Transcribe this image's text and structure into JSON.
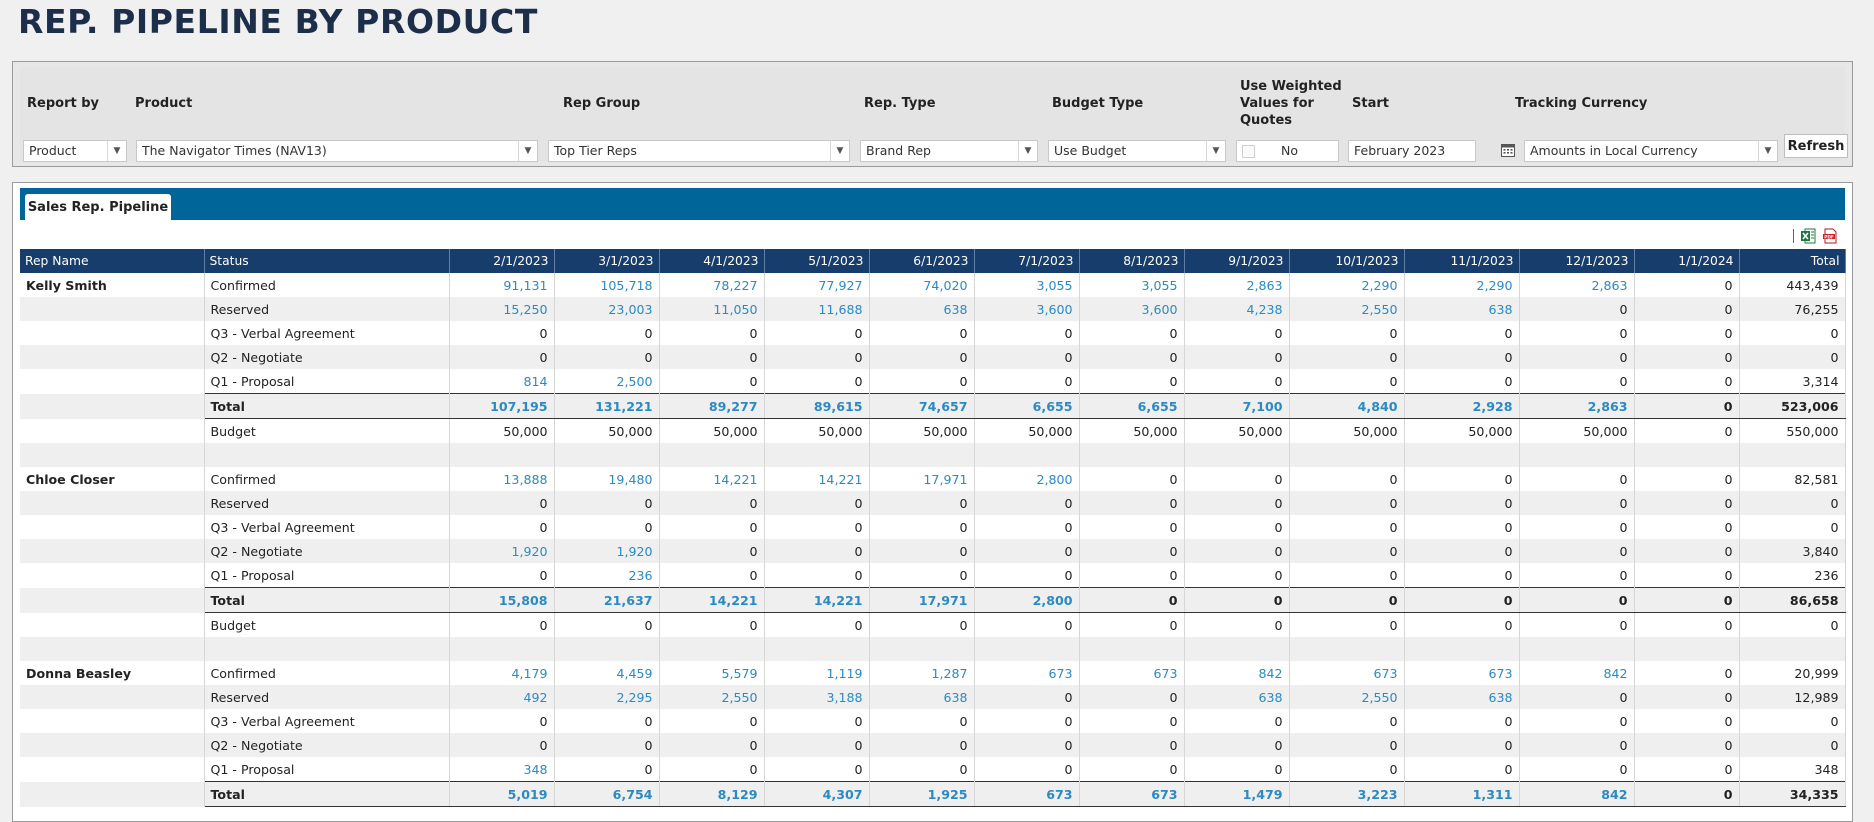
{
  "page": {
    "title": "REP. PIPELINE BY PRODUCT"
  },
  "filters": {
    "report_by": {
      "label": "Report by",
      "value": "Product"
    },
    "product": {
      "label": "Product",
      "value": "The Navigator Times  (NAV13)"
    },
    "rep_group": {
      "label": "Rep Group",
      "value": "Top Tier Reps"
    },
    "rep_type": {
      "label": "Rep. Type",
      "value": "Brand Rep"
    },
    "budget_type": {
      "label": "Budget Type",
      "value": "Use Budget"
    },
    "weighted": {
      "label": "Use Weighted Values for Quotes",
      "value": "No"
    },
    "start": {
      "label": "Start",
      "value": "February 2023"
    },
    "tracking_currency": {
      "label": "Tracking Currency",
      "value": "Amounts in Local Currency"
    },
    "refresh_label": "Refresh"
  },
  "tabs": [
    {
      "label": "Sales Rep. Pipeline"
    }
  ],
  "export": {
    "excel_icon": "excel-icon",
    "pdf_icon": "pdf-icon"
  },
  "grid": {
    "columns": [
      "Rep Name",
      "Status",
      "2/1/2023",
      "3/1/2023",
      "4/1/2023",
      "5/1/2023",
      "6/1/2023",
      "7/1/2023",
      "8/1/2023",
      "9/1/2023",
      "10/1/2023",
      "11/1/2023",
      "12/1/2023",
      "1/1/2024",
      "Total"
    ],
    "rows": [
      {
        "rep": "Kelly Smith",
        "status": "Confirmed",
        "kind": "data",
        "values": [
          "91,131",
          "105,718",
          "78,227",
          "77,927",
          "74,020",
          "3,055",
          "3,055",
          "2,863",
          "2,290",
          "2,290",
          "2,863",
          "0"
        ],
        "total": "443,439"
      },
      {
        "rep": "",
        "status": "Reserved",
        "kind": "data",
        "values": [
          "15,250",
          "23,003",
          "11,050",
          "11,688",
          "638",
          "3,600",
          "3,600",
          "4,238",
          "2,550",
          "638",
          "0",
          "0"
        ],
        "total": "76,255"
      },
      {
        "rep": "",
        "status": "Q3 - Verbal Agreement",
        "kind": "data",
        "values": [
          "0",
          "0",
          "0",
          "0",
          "0",
          "0",
          "0",
          "0",
          "0",
          "0",
          "0",
          "0"
        ],
        "total": "0"
      },
      {
        "rep": "",
        "status": "Q2 - Negotiate",
        "kind": "data",
        "values": [
          "0",
          "0",
          "0",
          "0",
          "0",
          "0",
          "0",
          "0",
          "0",
          "0",
          "0",
          "0"
        ],
        "total": "0"
      },
      {
        "rep": "",
        "status": "Q1 - Proposal",
        "kind": "data",
        "values": [
          "814",
          "2,500",
          "0",
          "0",
          "0",
          "0",
          "0",
          "0",
          "0",
          "0",
          "0",
          "0"
        ],
        "total": "3,314"
      },
      {
        "rep": "",
        "status": "Total",
        "kind": "total",
        "values": [
          "107,195",
          "131,221",
          "89,277",
          "89,615",
          "74,657",
          "6,655",
          "6,655",
          "7,100",
          "4,840",
          "2,928",
          "2,863",
          "0"
        ],
        "total": "523,006"
      },
      {
        "rep": "",
        "status": "Budget",
        "kind": "budget",
        "values": [
          "50,000",
          "50,000",
          "50,000",
          "50,000",
          "50,000",
          "50,000",
          "50,000",
          "50,000",
          "50,000",
          "50,000",
          "50,000",
          "0"
        ],
        "total": "550,000"
      },
      {
        "rep": "",
        "status": "",
        "kind": "spacer",
        "values": [
          "",
          "",
          "",
          "",
          "",
          "",
          "",
          "",
          "",
          "",
          "",
          ""
        ],
        "total": ""
      },
      {
        "rep": "Chloe Closer",
        "status": "Confirmed",
        "kind": "data",
        "values": [
          "13,888",
          "19,480",
          "14,221",
          "14,221",
          "17,971",
          "2,800",
          "0",
          "0",
          "0",
          "0",
          "0",
          "0"
        ],
        "total": "82,581"
      },
      {
        "rep": "",
        "status": "Reserved",
        "kind": "data",
        "values": [
          "0",
          "0",
          "0",
          "0",
          "0",
          "0",
          "0",
          "0",
          "0",
          "0",
          "0",
          "0"
        ],
        "total": "0"
      },
      {
        "rep": "",
        "status": "Q3 - Verbal Agreement",
        "kind": "data",
        "values": [
          "0",
          "0",
          "0",
          "0",
          "0",
          "0",
          "0",
          "0",
          "0",
          "0",
          "0",
          "0"
        ],
        "total": "0"
      },
      {
        "rep": "",
        "status": "Q2 - Negotiate",
        "kind": "data",
        "values": [
          "1,920",
          "1,920",
          "0",
          "0",
          "0",
          "0",
          "0",
          "0",
          "0",
          "0",
          "0",
          "0"
        ],
        "total": "3,840"
      },
      {
        "rep": "",
        "status": "Q1 - Proposal",
        "kind": "data",
        "values": [
          "0",
          "236",
          "0",
          "0",
          "0",
          "0",
          "0",
          "0",
          "0",
          "0",
          "0",
          "0"
        ],
        "total": "236"
      },
      {
        "rep": "",
        "status": "Total",
        "kind": "total",
        "values": [
          "15,808",
          "21,637",
          "14,221",
          "14,221",
          "17,971",
          "2,800",
          "0",
          "0",
          "0",
          "0",
          "0",
          "0"
        ],
        "total": "86,658"
      },
      {
        "rep": "",
        "status": "Budget",
        "kind": "budget",
        "values": [
          "0",
          "0",
          "0",
          "0",
          "0",
          "0",
          "0",
          "0",
          "0",
          "0",
          "0",
          "0"
        ],
        "total": "0"
      },
      {
        "rep": "",
        "status": "",
        "kind": "spacer",
        "values": [
          "",
          "",
          "",
          "",
          "",
          "",
          "",
          "",
          "",
          "",
          "",
          ""
        ],
        "total": ""
      },
      {
        "rep": "Donna Beasley",
        "status": "Confirmed",
        "kind": "data",
        "values": [
          "4,179",
          "4,459",
          "5,579",
          "1,119",
          "1,287",
          "673",
          "673",
          "842",
          "673",
          "673",
          "842",
          "0"
        ],
        "total": "20,999"
      },
      {
        "rep": "",
        "status": "Reserved",
        "kind": "data",
        "values": [
          "492",
          "2,295",
          "2,550",
          "3,188",
          "638",
          "0",
          "0",
          "638",
          "2,550",
          "638",
          "0",
          "0"
        ],
        "total": "12,989"
      },
      {
        "rep": "",
        "status": "Q3 - Verbal Agreement",
        "kind": "data",
        "values": [
          "0",
          "0",
          "0",
          "0",
          "0",
          "0",
          "0",
          "0",
          "0",
          "0",
          "0",
          "0"
        ],
        "total": "0"
      },
      {
        "rep": "",
        "status": "Q2 - Negotiate",
        "kind": "data",
        "values": [
          "0",
          "0",
          "0",
          "0",
          "0",
          "0",
          "0",
          "0",
          "0",
          "0",
          "0",
          "0"
        ],
        "total": "0"
      },
      {
        "rep": "",
        "status": "Q1 - Proposal",
        "kind": "data",
        "values": [
          "348",
          "0",
          "0",
          "0",
          "0",
          "0",
          "0",
          "0",
          "0",
          "0",
          "0",
          "0"
        ],
        "total": "348"
      },
      {
        "rep": "",
        "status": "Total",
        "kind": "total",
        "values": [
          "5,019",
          "6,754",
          "8,129",
          "4,307",
          "1,925",
          "673",
          "673",
          "1,479",
          "3,223",
          "1,311",
          "842",
          "0"
        ],
        "total": "34,335"
      }
    ]
  },
  "colors": {
    "header_navy": "#163d6b",
    "tab_strip": "#006699",
    "link_blue": "#2a8ac4",
    "title_navy": "#1c2e4a"
  }
}
